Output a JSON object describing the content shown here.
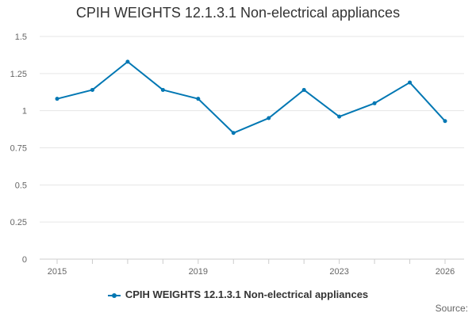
{
  "title": "CPIH WEIGHTS 12.1.3.1 Non-electrical appliances",
  "legend_label": "CPIH WEIGHTS 12.1.3.1 Non-electrical appliances",
  "source_label": "Source:",
  "colors": {
    "series": "#0077b3",
    "grid": "#e6e6e6",
    "axis": "#cccccc"
  },
  "chart_data": {
    "type": "line",
    "title": "CPIH WEIGHTS 12.1.3.1 Non-electrical appliances",
    "xlabel": "",
    "ylabel": "",
    "x": [
      2015,
      2016,
      2017,
      2018,
      2019,
      2020,
      2021,
      2022,
      2023,
      2024,
      2025,
      2026
    ],
    "x_tick_labels": [
      "2015",
      "2019",
      "2023",
      "2026"
    ],
    "x_ticks": [
      2015,
      2019,
      2023,
      2026
    ],
    "y_ticks": [
      0,
      0.25,
      0.5,
      0.75,
      1,
      1.25,
      1.5
    ],
    "y_tick_labels": [
      "0",
      "0.25",
      "0.5",
      "0.75",
      "1",
      "1.25",
      "1.5"
    ],
    "ylim": [
      0,
      1.5
    ],
    "xlim": [
      2015,
      2026
    ],
    "grid": true,
    "legend_position": "bottom",
    "series": [
      {
        "name": "CPIH WEIGHTS 12.1.3.1 Non-electrical appliances",
        "values": [
          1.08,
          1.14,
          1.33,
          1.14,
          1.08,
          0.85,
          0.95,
          1.14,
          0.96,
          1.05,
          1.19,
          0.93
        ]
      }
    ]
  }
}
